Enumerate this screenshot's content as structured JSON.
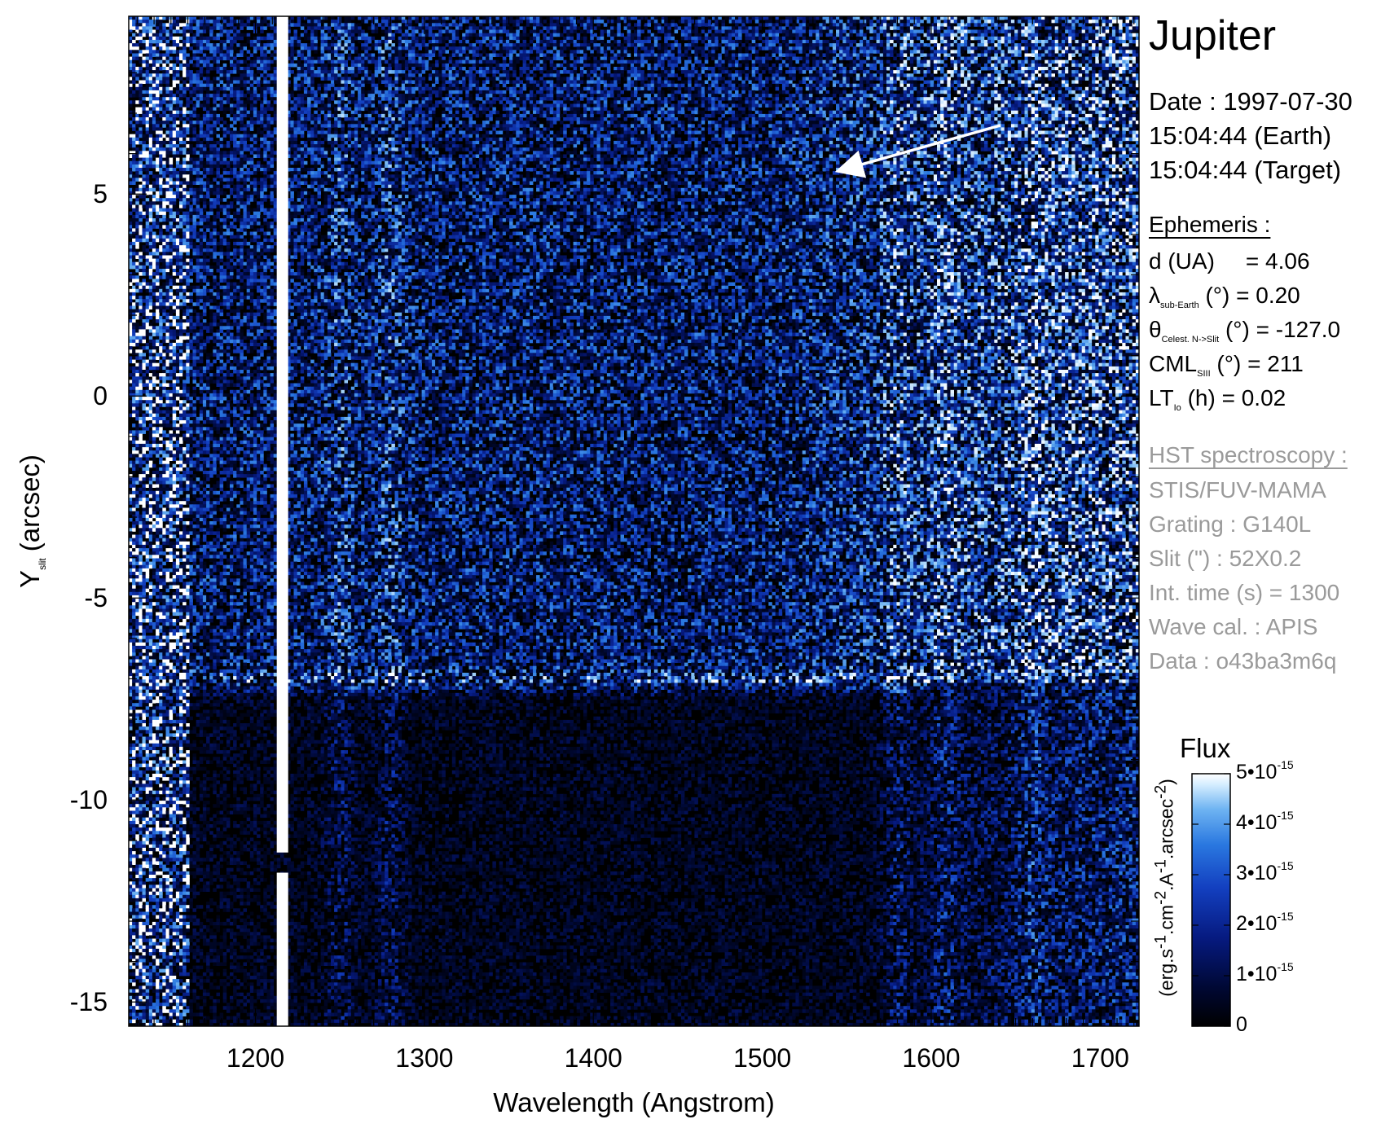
{
  "chart_data": {
    "type": "heatmap",
    "title": "Jupiter",
    "xlabel": "Wavelength (Angstrom)",
    "ylabel_main": "Y",
    "ylabel_sub": "slit",
    "ylabel_unit": "(arcsec)",
    "xlim": [
      1125,
      1723
    ],
    "ylim": [
      -15.6,
      9.4
    ],
    "x_ticks": [
      1200,
      1300,
      1400,
      1500,
      1600,
      1700
    ],
    "y_ticks": [
      5,
      0,
      -5,
      -10,
      -15
    ],
    "colormap": [
      "#000000",
      "#000833",
      "#061a80",
      "#1340c0",
      "#2a78e0",
      "#6fb4f2",
      "#d8efff",
      "#ffffff"
    ],
    "features": {
      "lyman_alpha_line_wavelength": 1216,
      "lyman_alpha_gap_y": [
        -11.8,
        -11.3
      ],
      "disk_edge_y": -7.1,
      "emission_bands_wavelength": [
        1250,
        1280,
        1580,
        1608,
        1660
      ]
    },
    "arrow": {
      "from": [
        1641,
        6.7
      ],
      "to": [
        1556,
        5.7
      ]
    },
    "colorbar": {
      "title": "Flux",
      "label": "(erg.s-1.cm-2.A-1.arcsec-2)",
      "range": [
        0,
        5e-15
      ],
      "ticks": [
        {
          "value": 5e-15,
          "mant": "5•10",
          "exp": "-15"
        },
        {
          "value": 4e-15,
          "mant": "4•10",
          "exp": "-15"
        },
        {
          "value": 3e-15,
          "mant": "3•10",
          "exp": "-15"
        },
        {
          "value": 2e-15,
          "mant": "2•10",
          "exp": "-15"
        },
        {
          "value": 1e-15,
          "mant": "1•10",
          "exp": "-15"
        },
        {
          "value": 0,
          "mant": "0",
          "exp": ""
        }
      ]
    }
  },
  "info": {
    "title": "Jupiter",
    "date_line": "Date : 1997-07-30",
    "time_earth": "15:04:44 (Earth)",
    "time_target": "15:04:44 (Target)",
    "ephemeris_header": "Ephemeris :",
    "d_label": "d (UA)",
    "d_value": "= 4.06",
    "lambda_symbol": "λ",
    "lambda_sub": "sub-Earth",
    "lambda_unit": "(°)",
    "lambda_value": "= 0.20",
    "theta_symbol": "θ",
    "theta_sub": "Celest. N->Slit",
    "theta_unit": "(°)",
    "theta_value": "= -127.0",
    "cml_symbol": "CML",
    "cml_sub": "SIII",
    "cml_unit": "(°)",
    "cml_value": "= 211",
    "lt_symbol": "LT",
    "lt_sub": "Io",
    "lt_unit": "(h)",
    "lt_value": "= 0.02",
    "hst_header": "HST spectroscopy :",
    "instrument": "STIS/FUV-MAMA",
    "grating": "Grating : G140L",
    "slit": "Slit (\") : 52X0.2",
    "int_time": "Int. time (s) = 1300",
    "wave_cal": "Wave cal. : APIS",
    "data_id": "Data : o43ba3m6q"
  }
}
